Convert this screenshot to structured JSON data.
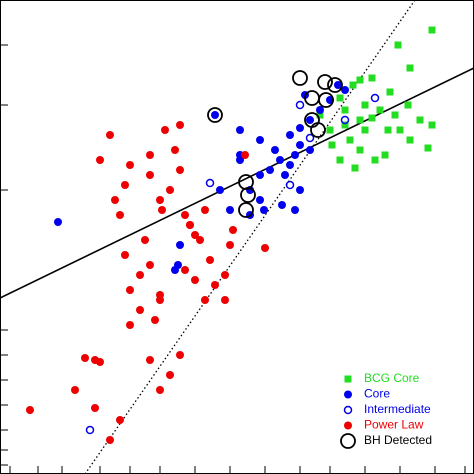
{
  "chart_data": {
    "type": "scatter",
    "xlim": [
      0,
      474
    ],
    "ylim": [
      0,
      474
    ],
    "xticks": [
      10,
      38,
      62,
      100,
      130,
      160,
      195,
      230,
      265,
      300,
      330,
      365,
      400,
      435,
      465
    ],
    "yticks": [
      9,
      24,
      44,
      69,
      94,
      119,
      144,
      284,
      369,
      429
    ],
    "lines": [
      {
        "style": "solid",
        "x": [
          0,
          474
        ],
        "y": [
          176,
          406
        ]
      },
      {
        "style": "dotted",
        "x": [
          85,
          415
        ],
        "y": [
          0,
          474
        ]
      }
    ],
    "legend": "lower right",
    "series": [
      {
        "name": "BCG Core",
        "color": "#22dd22",
        "marker": "square",
        "x": [
          432,
          398,
          410,
          372,
          360,
          353,
          390,
          340,
          365,
          380,
          395,
          408,
          420,
          432,
          428,
          345,
          330,
          350,
          360,
          375,
          385,
          340,
          355,
          332,
          320,
          400,
          410,
          365,
          372,
          345,
          360,
          388
        ],
        "values": [
          444,
          429,
          406,
          396,
          394,
          389,
          382,
          376,
          369,
          364,
          359,
          369,
          354,
          349,
          326,
          349,
          344,
          334,
          324,
          314,
          319,
          314,
          306,
          329,
          359,
          344,
          334,
          344,
          356,
          364,
          354,
          344
        ]
      },
      {
        "name": "Core",
        "color": "#0000ee",
        "marker": "circle",
        "x": [
          58,
          215,
          240,
          260,
          275,
          290,
          300,
          310,
          320,
          305,
          330,
          338,
          345,
          260,
          250,
          270,
          280,
          240,
          220,
          230,
          250,
          282,
          295,
          300,
          310,
          290,
          180,
          178,
          175,
          260,
          300,
          295,
          240,
          285,
          264
        ],
        "values": [
          252,
          359,
          344,
          334,
          324,
          339,
          346,
          354,
          364,
          379,
          374,
          389,
          384,
          299,
          284,
          304,
          314,
          314,
          284,
          264,
          259,
          269,
          264,
          284,
          324,
          309,
          229,
          209,
          204,
          274,
          329,
          319,
          319,
          299,
          264
        ]
      },
      {
        "name": "Intermediate",
        "color": "#0000ee",
        "marker": "open-circle",
        "x": [
          210,
          290,
          375,
          310,
          345,
          90,
          300
        ],
        "values": [
          291,
          289,
          376,
          336,
          354,
          44,
          369
        ]
      },
      {
        "name": "Power Law",
        "color": "#ee0000",
        "marker": "circle",
        "x": [
          30,
          95,
          100,
          85,
          75,
          95,
          120,
          110,
          160,
          170,
          150,
          180,
          140,
          130,
          155,
          160,
          140,
          150,
          125,
          130,
          145,
          162,
          170,
          180,
          175,
          180,
          150,
          150,
          165,
          160,
          185,
          190,
          195,
          185,
          195,
          205,
          210,
          230,
          225,
          215,
          225,
          233,
          245,
          265,
          205,
          120,
          125,
          130,
          110,
          160,
          200,
          100,
          190,
          115
        ],
        "values": [
          64,
          114,
          112,
          116,
          84,
          66,
          54,
          34,
          84,
          99,
          114,
          119,
          164,
          149,
          154,
          179,
          199,
          209,
          219,
          184,
          234,
          264,
          284,
          304,
          324,
          349,
          319,
          299,
          344,
          274,
          259,
          249,
          239,
          204,
          194,
          174,
          214,
          229,
          199,
          189,
          174,
          244,
          319,
          226,
          264,
          259,
          289,
          309,
          339,
          174,
          234,
          314,
          249,
          274
        ]
      },
      {
        "name": "BH Detected",
        "color": "#000000",
        "marker": "ring",
        "x": [
          300,
          325,
          215,
          312,
          326,
          312,
          246,
          246,
          248,
          318,
          335
        ],
        "values": [
          396,
          392,
          359,
          376,
          374,
          354,
          292,
          264,
          279,
          344,
          389
        ]
      }
    ]
  }
}
